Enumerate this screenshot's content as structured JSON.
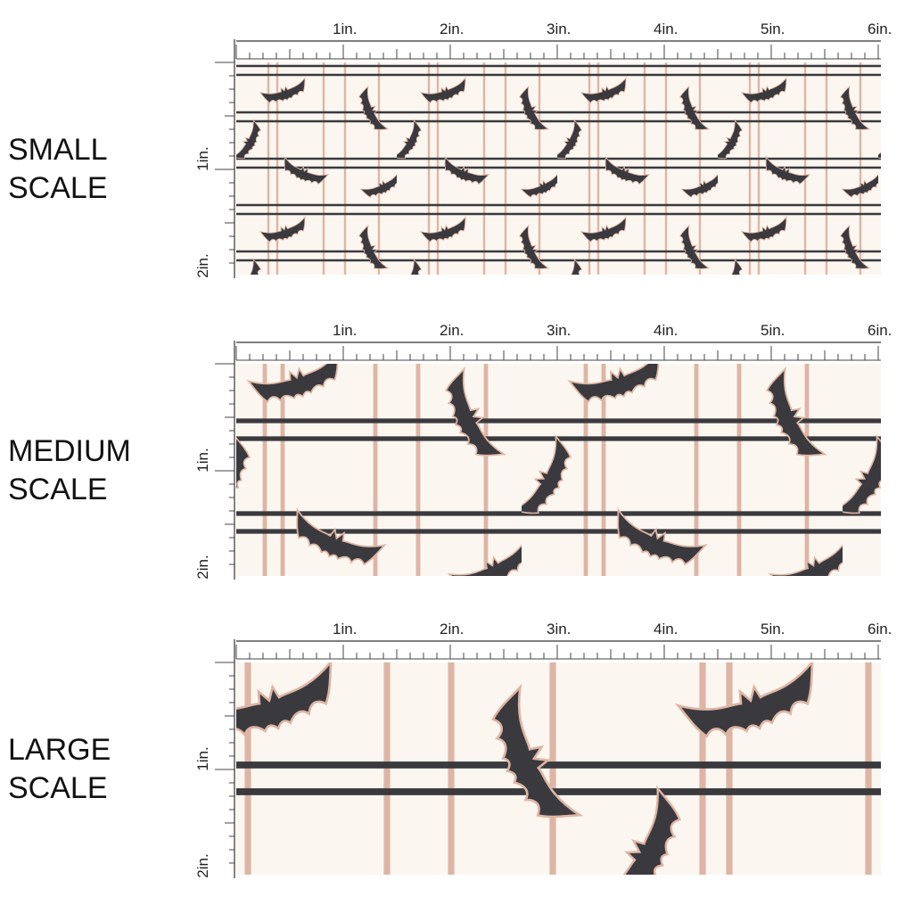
{
  "panels": [
    {
      "label": [
        "SMALL",
        "SCALE"
      ],
      "ruler_top": [
        "1in.",
        "2in.",
        "3in.",
        "4in.",
        "5in.",
        "6in."
      ],
      "ruler_side": [
        "1in.",
        "2in."
      ]
    },
    {
      "label": [
        "MEDIUM",
        "SCALE"
      ],
      "ruler_top": [
        "1in.",
        "2in.",
        "3in.",
        "4in.",
        "5in.",
        "6in."
      ],
      "ruler_side": [
        "1in.",
        "2in."
      ]
    },
    {
      "label": [
        "LARGE",
        "SCALE"
      ],
      "ruler_top": [
        "1in.",
        "2in.",
        "3in.",
        "4in.",
        "5in.",
        "6in."
      ],
      "ruler_side": [
        "1in.",
        "2in."
      ]
    }
  ]
}
